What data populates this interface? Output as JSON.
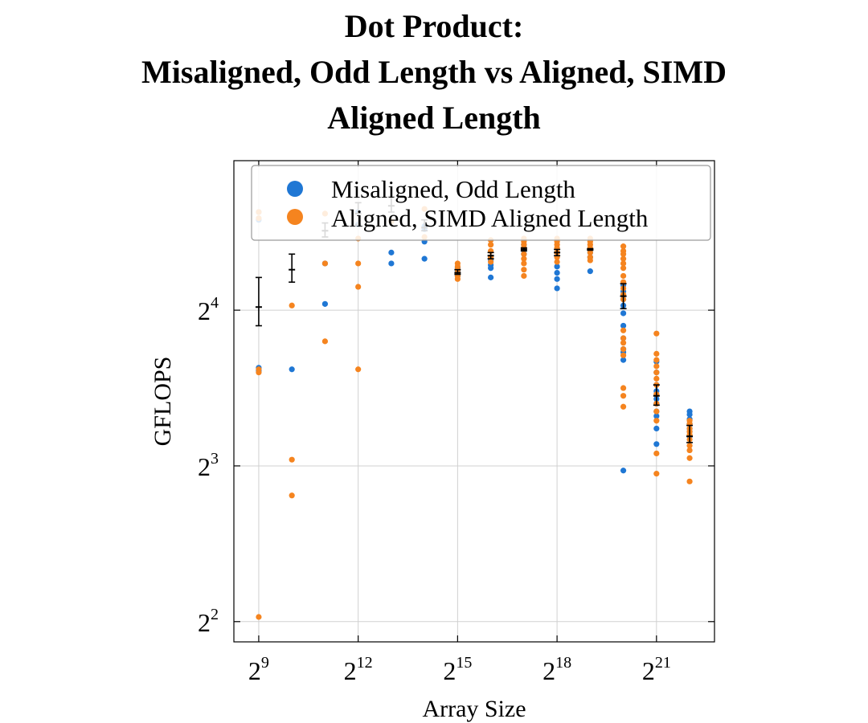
{
  "chart_data": {
    "type": "scatter",
    "title_lines": [
      "Dot Product:",
      "Misaligned, Odd Length vs Aligned, SIMD",
      "Aligned Length"
    ],
    "xlabel": "Array Size",
    "ylabel": "GFLOPS",
    "x_scale": "log2",
    "y_scale": "log2",
    "xlim_log2": [
      8.25,
      22.75
    ],
    "ylim_log2": [
      1.87,
      4.96
    ],
    "x_ticks": [
      {
        "exp": 9,
        "base": "2",
        "sup": "9"
      },
      {
        "exp": 12,
        "base": "2",
        "sup": "12"
      },
      {
        "exp": 15,
        "base": "2",
        "sup": "15"
      },
      {
        "exp": 18,
        "base": "2",
        "sup": "18"
      },
      {
        "exp": 21,
        "base": "2",
        "sup": "21"
      }
    ],
    "y_ticks": [
      {
        "exp": 2,
        "base": "2",
        "sup": "2"
      },
      {
        "exp": 3,
        "base": "2",
        "sup": "3"
      },
      {
        "exp": 4,
        "base": "2",
        "sup": "4"
      }
    ],
    "grid": true,
    "legend_position": "top-right",
    "series": [
      {
        "name": "Misaligned, Odd Length",
        "color": "#1f77d4",
        "points": [
          [
            9,
            4.63
          ],
          [
            9,
            4.58
          ],
          [
            9,
            3.63
          ],
          [
            9,
            3.61
          ],
          [
            10,
            3.62
          ],
          [
            11,
            4.3
          ],
          [
            11,
            4.04
          ],
          [
            12,
            4.63
          ],
          [
            12,
            4.55
          ],
          [
            13,
            4.37
          ],
          [
            13,
            4.3
          ],
          [
            14,
            4.54
          ],
          [
            14,
            4.52
          ],
          [
            14,
            4.44
          ],
          [
            14,
            4.33
          ],
          [
            15,
            4.27
          ],
          [
            15,
            4.25
          ],
          [
            15,
            4.22
          ],
          [
            16,
            4.32
          ],
          [
            16,
            4.29
          ],
          [
            16,
            4.27
          ],
          [
            16,
            4.21
          ],
          [
            17,
            4.42
          ],
          [
            17,
            4.39
          ],
          [
            17,
            4.36
          ],
          [
            18,
            4.28
          ],
          [
            18,
            4.24
          ],
          [
            18,
            4.2
          ],
          [
            18,
            4.14
          ],
          [
            19,
            4.37
          ],
          [
            19,
            4.34
          ],
          [
            19,
            4.25
          ],
          [
            20,
            4.16
          ],
          [
            20,
            4.12
          ],
          [
            20,
            4.07
          ],
          [
            20,
            4.03
          ],
          [
            20,
            3.98
          ],
          [
            20,
            3.9
          ],
          [
            20,
            3.82
          ],
          [
            20,
            3.75
          ],
          [
            20,
            3.73
          ],
          [
            20,
            3.68
          ],
          [
            20,
            2.97
          ],
          [
            21,
            3.67
          ],
          [
            21,
            3.6
          ],
          [
            21,
            3.52
          ],
          [
            21,
            3.48
          ],
          [
            21,
            3.43
          ],
          [
            21,
            3.4
          ],
          [
            21,
            3.35
          ],
          [
            21,
            3.32
          ],
          [
            21,
            3.24
          ],
          [
            21,
            3.14
          ],
          [
            22,
            3.35
          ],
          [
            22,
            3.33
          ],
          [
            22,
            3.3
          ],
          [
            22,
            3.27
          ],
          [
            22,
            3.24
          ],
          [
            22,
            3.22
          ],
          [
            22,
            3.19
          ]
        ]
      },
      {
        "name": "Aligned, SIMD Aligned Length",
        "color": "#f5841f",
        "points": [
          [
            9,
            4.63
          ],
          [
            9,
            4.59
          ],
          [
            9,
            3.62
          ],
          [
            9,
            3.6
          ],
          [
            9,
            2.03
          ],
          [
            10,
            4.03
          ],
          [
            10,
            3.04
          ],
          [
            10,
            2.81
          ],
          [
            11,
            4.62
          ],
          [
            11,
            4.3
          ],
          [
            11,
            3.8
          ],
          [
            12,
            4.46
          ],
          [
            12,
            4.3
          ],
          [
            12,
            4.15
          ],
          [
            12,
            3.62
          ],
          [
            13,
            4.57
          ],
          [
            14,
            4.65
          ],
          [
            14,
            4.47
          ],
          [
            15,
            4.3
          ],
          [
            15,
            4.28
          ],
          [
            15,
            4.26
          ],
          [
            15,
            4.24
          ],
          [
            15,
            4.22
          ],
          [
            15,
            4.2
          ],
          [
            16,
            4.45
          ],
          [
            16,
            4.42
          ],
          [
            16,
            4.38
          ],
          [
            16,
            4.34
          ],
          [
            16,
            4.31
          ],
          [
            17,
            4.46
          ],
          [
            17,
            4.44
          ],
          [
            17,
            4.42
          ],
          [
            17,
            4.4
          ],
          [
            17,
            4.36
          ],
          [
            17,
            4.33
          ],
          [
            17,
            4.3
          ],
          [
            17,
            4.26
          ],
          [
            17,
            4.22
          ],
          [
            18,
            4.46
          ],
          [
            18,
            4.44
          ],
          [
            18,
            4.42
          ],
          [
            18,
            4.4
          ],
          [
            18,
            4.37
          ],
          [
            18,
            4.34
          ],
          [
            18,
            4.31
          ],
          [
            19,
            4.46
          ],
          [
            19,
            4.44
          ],
          [
            19,
            4.42
          ],
          [
            19,
            4.4
          ],
          [
            19,
            4.37
          ],
          [
            19,
            4.34
          ],
          [
            19,
            4.32
          ],
          [
            20,
            4.41
          ],
          [
            20,
            4.38
          ],
          [
            20,
            4.36
          ],
          [
            20,
            4.33
          ],
          [
            20,
            4.3
          ],
          [
            20,
            4.27
          ],
          [
            20,
            4.22
          ],
          [
            20,
            4.18
          ],
          [
            20,
            4.14
          ],
          [
            20,
            4.1
          ],
          [
            20,
            4.07
          ],
          [
            20,
            3.87
          ],
          [
            20,
            3.82
          ],
          [
            20,
            3.79
          ],
          [
            20,
            3.75
          ],
          [
            20,
            3.71
          ],
          [
            20,
            3.5
          ],
          [
            20,
            3.45
          ],
          [
            20,
            3.38
          ],
          [
            21,
            3.85
          ],
          [
            21,
            3.72
          ],
          [
            21,
            3.68
          ],
          [
            21,
            3.64
          ],
          [
            21,
            3.6
          ],
          [
            21,
            3.56
          ],
          [
            21,
            3.52
          ],
          [
            21,
            3.46
          ],
          [
            21,
            3.4
          ],
          [
            21,
            3.35
          ],
          [
            21,
            3.29
          ],
          [
            21,
            3.08
          ],
          [
            21,
            2.95
          ],
          [
            22,
            3.29
          ],
          [
            22,
            3.27
          ],
          [
            22,
            3.24
          ],
          [
            22,
            3.22
          ],
          [
            22,
            3.2
          ],
          [
            22,
            3.17
          ],
          [
            22,
            3.13
          ],
          [
            22,
            3.1
          ],
          [
            22,
            3.05
          ],
          [
            22,
            2.9
          ]
        ]
      }
    ],
    "error_bars": [
      {
        "x": 9,
        "y": 4.02,
        "low": 3.9,
        "high": 4.21
      },
      {
        "x": 10,
        "y": 4.26,
        "low": 4.18,
        "high": 4.36
      },
      {
        "x": 11,
        "y": 4.51,
        "low": 4.47,
        "high": 4.56
      },
      {
        "x": 12,
        "y": 4.62,
        "low": 4.55,
        "high": 4.69
      },
      {
        "x": 13,
        "y": 4.67,
        "low": 4.63,
        "high": 4.73
      },
      {
        "x": 14,
        "y": 4.53,
        "low": 4.51,
        "high": 4.58
      },
      {
        "x": 15,
        "y": 4.24,
        "low": 4.23,
        "high": 4.26
      },
      {
        "x": 16,
        "y": 4.35,
        "low": 4.33,
        "high": 4.37
      },
      {
        "x": 17,
        "y": 4.39,
        "low": 4.38,
        "high": 4.4
      },
      {
        "x": 18,
        "y": 4.37,
        "low": 4.35,
        "high": 4.39
      },
      {
        "x": 19,
        "y": 4.39,
        "low": 4.385,
        "high": 4.395
      },
      {
        "x": 20,
        "y": 4.09,
        "low": 4.01,
        "high": 4.17
      },
      {
        "x": 21,
        "y": 3.45,
        "low": 3.39,
        "high": 3.52
      },
      {
        "x": 22,
        "y": 3.19,
        "low": 3.15,
        "high": 3.26
      }
    ]
  }
}
